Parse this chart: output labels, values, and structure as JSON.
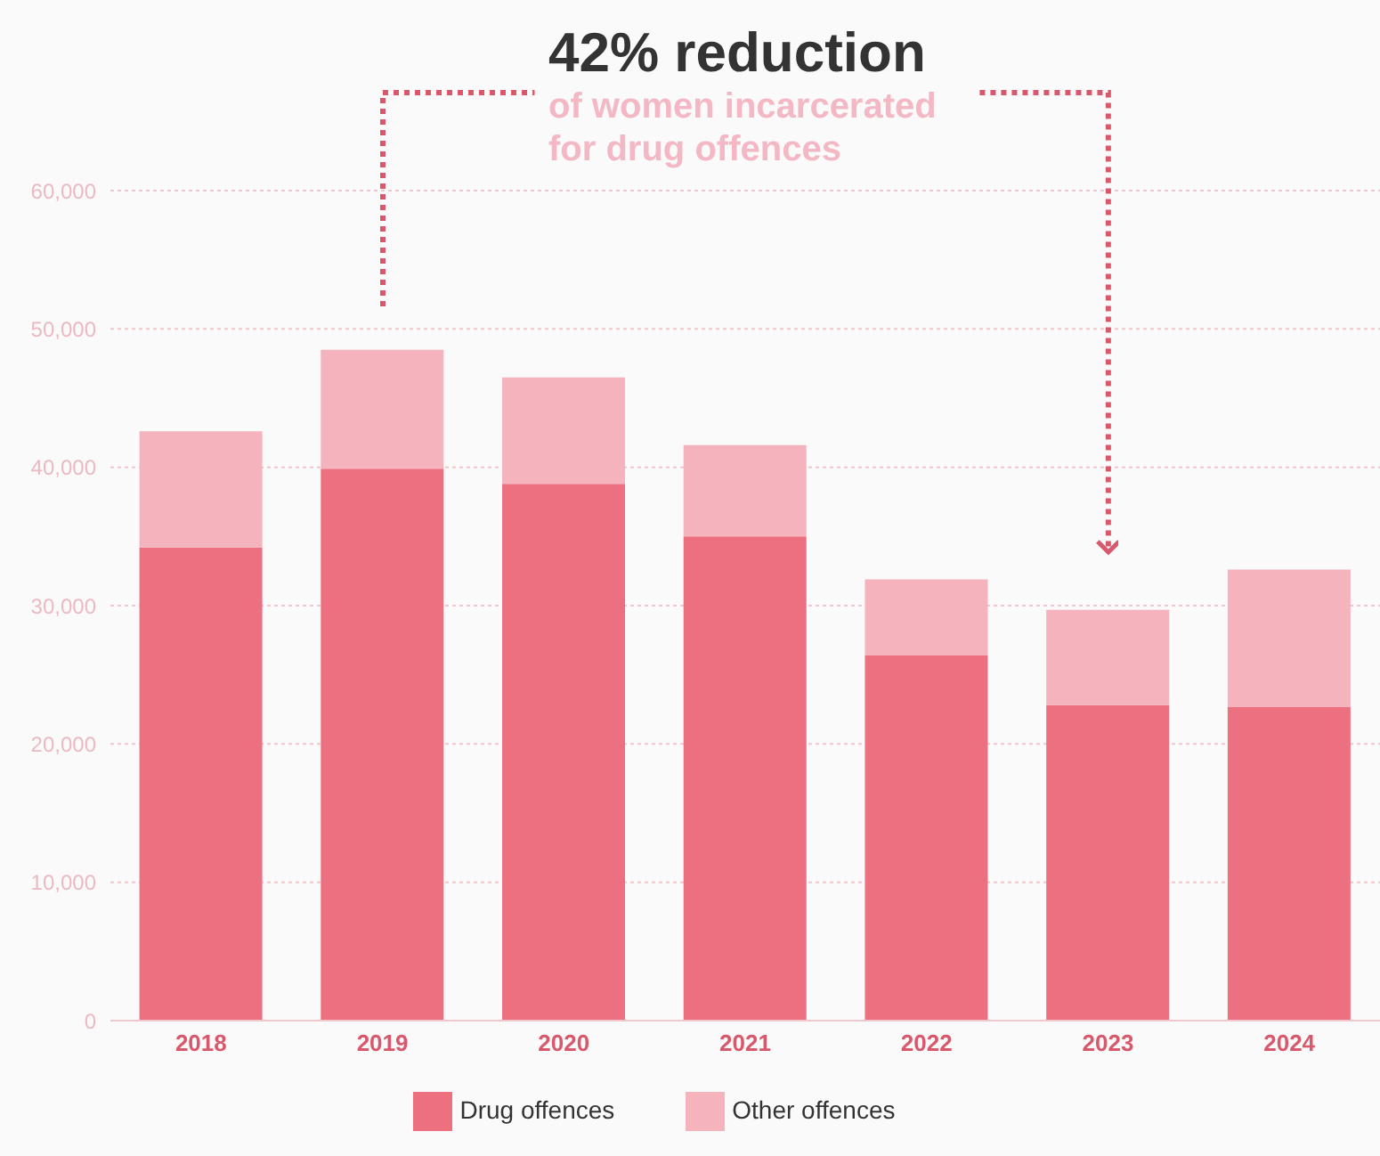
{
  "chart_data": {
    "type": "bar",
    "title": "42% reduction",
    "subtitle": "of women incarcerated for drug offences",
    "categories": [
      "2018",
      "2019",
      "2020",
      "2021",
      "2022",
      "2023",
      "2024"
    ],
    "stacked": true,
    "series": [
      {
        "name": "Drug offences",
        "color": "#ec7080",
        "values": [
          34200,
          39900,
          38800,
          35000,
          26400,
          22800,
          22700
        ]
      },
      {
        "name": "Other offences",
        "color": "#f5b3bd",
        "values": [
          8400,
          8600,
          7700,
          6600,
          5500,
          6900,
          9900
        ]
      }
    ],
    "ylim": [
      0,
      60000
    ],
    "yticks": [
      {
        "value": 0,
        "label": "0"
      },
      {
        "value": 10000,
        "label": "10,000"
      },
      {
        "value": 20000,
        "label": "20,000"
      },
      {
        "value": 30000,
        "label": "30,000"
      },
      {
        "value": 40000,
        "label": "40,000"
      },
      {
        "value": 50000,
        "label": "50,000"
      },
      {
        "value": 60000,
        "label": "60,000"
      }
    ],
    "grid": "y",
    "legend": "bottom"
  }
}
